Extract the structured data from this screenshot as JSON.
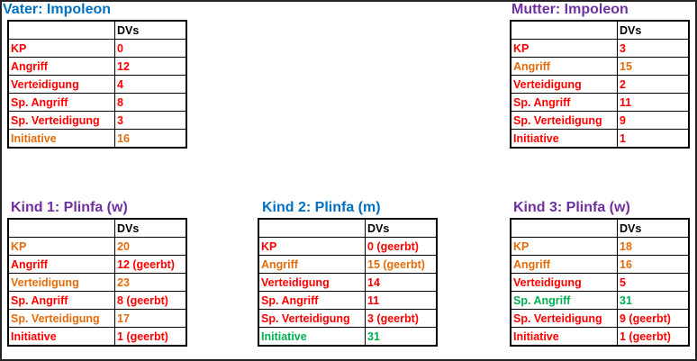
{
  "colors": {
    "blue": "#0070c0",
    "purple": "#7030a0",
    "red": "#ff0000",
    "orange": "#e46c0a",
    "green": "#00b050"
  },
  "header_dv": "DVs",
  "panels": [
    {
      "id": "vater",
      "title": "Vater:  Impoleon",
      "title_color": "#0070c0",
      "rows": [
        {
          "label": "KP",
          "value": "0",
          "color": "red"
        },
        {
          "label": "Angriff",
          "value": "12",
          "color": "red"
        },
        {
          "label": "Verteidigung",
          "value": "4",
          "color": "red"
        },
        {
          "label": "Sp. Angriff",
          "value": "8",
          "color": "red"
        },
        {
          "label": "Sp. Verteidigung",
          "value": "3",
          "color": "red"
        },
        {
          "label": "Initiative",
          "value": "16",
          "color": "orange"
        }
      ]
    },
    {
      "id": "mutter",
      "title": "Mutter:  Impoleon",
      "title_color": "#7030a0",
      "rows": [
        {
          "label": "KP",
          "value": "3",
          "color": "red"
        },
        {
          "label": "Angriff",
          "value": "15",
          "color": "orange"
        },
        {
          "label": "Verteidigung",
          "value": "2",
          "color": "red"
        },
        {
          "label": "Sp. Angriff",
          "value": "11",
          "color": "red"
        },
        {
          "label": "Sp. Verteidigung",
          "value": "9",
          "color": "red"
        },
        {
          "label": "Initiative",
          "value": "1",
          "color": "red"
        }
      ]
    },
    {
      "id": "kind1",
      "title": "Kind 1: Plinfa (w)",
      "title_color": "#7030a0",
      "rows": [
        {
          "label": "KP",
          "value": "20",
          "color": "orange"
        },
        {
          "label": "Angriff",
          "value": "12 (geerbt)",
          "color": "red"
        },
        {
          "label": "Verteidigung",
          "value": "23",
          "color": "orange"
        },
        {
          "label": "Sp. Angriff",
          "value": "8 (geerbt)",
          "color": "red"
        },
        {
          "label": "Sp. Verteidigung",
          "value": "17",
          "color": "orange"
        },
        {
          "label": "Initiative",
          "value": "1 (geerbt)",
          "color": "red"
        }
      ]
    },
    {
      "id": "kind2",
      "title": "Kind 2: Plinfa (m)",
      "title_color": "#0070c0",
      "rows": [
        {
          "label": "KP",
          "value": "0 (geerbt)",
          "color": "red"
        },
        {
          "label": "Angriff",
          "value": "15 (geerbt)",
          "color": "orange"
        },
        {
          "label": "Verteidigung",
          "value": "14",
          "color": "red"
        },
        {
          "label": "Sp. Angriff",
          "value": "11",
          "color": "red"
        },
        {
          "label": "Sp. Verteidigung",
          "value": "3 (geerbt)",
          "color": "red"
        },
        {
          "label": "Initiative",
          "value": "31",
          "color": "green"
        }
      ]
    },
    {
      "id": "kind3",
      "title": "Kind 3: Plinfa (w)",
      "title_color": "#7030a0",
      "rows": [
        {
          "label": "KP",
          "value": "18",
          "color": "orange"
        },
        {
          "label": "Angriff",
          "value": "16",
          "color": "orange"
        },
        {
          "label": "Verteidigung",
          "value": "5",
          "color": "red"
        },
        {
          "label": "Sp. Angriff",
          "value": "31",
          "color": "green"
        },
        {
          "label": "Sp. Verteidigung",
          "value": "9 (geerbt)",
          "color": "red"
        },
        {
          "label": "Initiative",
          "value": "1 (geerbt)",
          "color": "red"
        }
      ]
    }
  ]
}
